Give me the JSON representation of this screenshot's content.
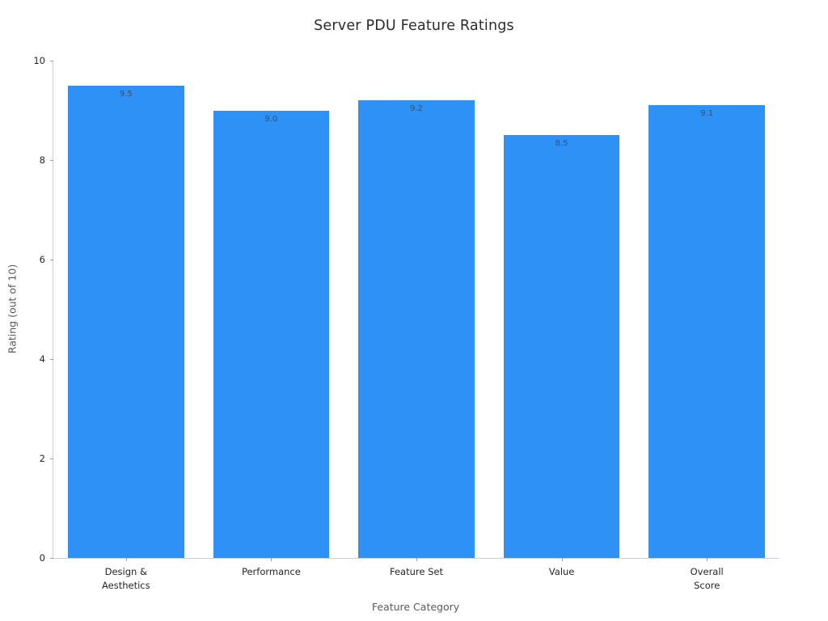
{
  "chart_data": {
    "type": "bar",
    "title": "Server PDU Feature Ratings",
    "xlabel": "Feature Category",
    "ylabel": "Rating (out of 10)",
    "categories": [
      "Design &\nAesthetics",
      "Performance",
      "Feature Set",
      "Value",
      "Overall\nScore"
    ],
    "values": [
      9.5,
      9.0,
      9.2,
      8.5,
      9.1
    ],
    "value_labels": [
      "9.5",
      "9.0",
      "9.2",
      "8.5",
      "9.1"
    ],
    "ylim": [
      0,
      10
    ],
    "yticks": [
      0,
      2,
      4,
      6,
      8,
      10
    ],
    "bar_color": "#2e91f5",
    "bar_width_fraction": 0.8,
    "grid": false,
    "legend": "none",
    "background_color": "#ffffff"
  }
}
